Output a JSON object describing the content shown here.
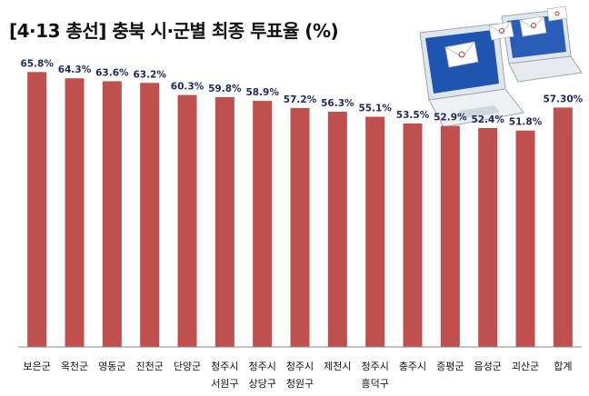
{
  "colors": {
    "bar": "#c0504d",
    "value_label": "#1f2a5c",
    "axis": "#888888",
    "text": "#111111"
  },
  "illustration": {
    "icon": "laptops-with-email-envelopes-icon"
  },
  "chart_data": {
    "type": "bar",
    "title": "[4·13 총선] 충북 시·군별 최종 투표율 (%)",
    "categories": [
      [
        "보은군"
      ],
      [
        "옥천군"
      ],
      [
        "영동군"
      ],
      [
        "진천군"
      ],
      [
        "단양군"
      ],
      [
        "청주시",
        "서원구"
      ],
      [
        "청주시",
        "상당구"
      ],
      [
        "청주시",
        "청원구"
      ],
      [
        "제천시"
      ],
      [
        "청주시",
        "흥덕구"
      ],
      [
        "충주시"
      ],
      [
        "증평군"
      ],
      [
        "음성군"
      ],
      [
        "괴산군"
      ],
      [
        "합계"
      ]
    ],
    "values": [
      65.8,
      64.3,
      63.6,
      63.2,
      60.3,
      59.8,
      58.9,
      57.2,
      56.3,
      55.1,
      53.5,
      52.9,
      52.4,
      51.8,
      57.3
    ],
    "value_labels": [
      "65.8%",
      "64.3%",
      "63.6%",
      "63.2%",
      "60.3%",
      "59.8%",
      "58.9%",
      "57.2%",
      "56.3%",
      "55.1%",
      "53.5%",
      "52.9%",
      "52.4%",
      "51.8%",
      "57.30%"
    ],
    "xlabel": "",
    "ylabel": "",
    "ylim": [
      0,
      70
    ],
    "grid": false,
    "legend": "none"
  }
}
